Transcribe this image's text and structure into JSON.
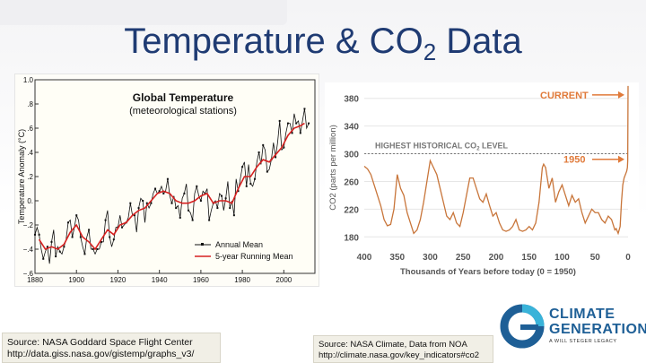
{
  "title": {
    "main": "Temperature & CO",
    "sub": "2",
    "tail": " Data"
  },
  "source_left": {
    "line1": "Source: NASA Goddard Space Flight Center",
    "line2": "http://data.giss.nasa.gov/gistemp/graphs_v3/"
  },
  "source_right": {
    "line1": "Source: NASA Climate, Data from NOA",
    "line2": "http://climate.nasa.gov/key_indicators#co2"
  },
  "logo": {
    "line1": "CLIMATE",
    "line2": "GENERATION",
    "tagline": "A WILL STEGER LEGACY",
    "brand_color": "#1e5f96",
    "accent_color": "#39b3d9"
  },
  "colors": {
    "title": "#1f3b73",
    "temp_annual": "#111111",
    "temp_running": "#d62020",
    "co2_line": "#c8753a",
    "co2_label": "#e07a3a"
  },
  "chart_data": [
    {
      "type": "line",
      "title": "Global Temperature",
      "subtitle": "(meteorological stations)",
      "ylabel": "Temperature Anomaly (°C)",
      "xlabel": "",
      "xlim": [
        1880,
        2015
      ],
      "ylim": [
        -0.6,
        1.0
      ],
      "x_ticks": [
        1880,
        1900,
        1920,
        1940,
        1960,
        1980,
        2000
      ],
      "y_ticks": [
        -0.6,
        -0.4,
        -0.2,
        0.0,
        0.2,
        0.4,
        0.6,
        0.8,
        1.0
      ],
      "y_tick_labels": [
        "−.6",
        "−.4",
        "−.2",
        "0.",
        ".2",
        ".4",
        ".6",
        ".8",
        "1.0"
      ],
      "legend": {
        "position": "bottom-right",
        "annual": "Annual Mean",
        "running": "5-year Running Mean"
      },
      "series": [
        {
          "name": "Annual Mean",
          "x": [
            1880,
            1881,
            1882,
            1883,
            1884,
            1885,
            1886,
            1887,
            1888,
            1889,
            1890,
            1891,
            1892,
            1893,
            1894,
            1895,
            1896,
            1897,
            1898,
            1899,
            1900,
            1901,
            1902,
            1903,
            1904,
            1905,
            1906,
            1907,
            1908,
            1909,
            1910,
            1911,
            1912,
            1913,
            1914,
            1915,
            1916,
            1917,
            1918,
            1919,
            1920,
            1921,
            1922,
            1923,
            1924,
            1925,
            1926,
            1927,
            1928,
            1929,
            1930,
            1931,
            1932,
            1933,
            1934,
            1935,
            1936,
            1937,
            1938,
            1939,
            1940,
            1941,
            1942,
            1943,
            1944,
            1945,
            1946,
            1947,
            1948,
            1949,
            1950,
            1951,
            1952,
            1953,
            1954,
            1955,
            1956,
            1957,
            1958,
            1959,
            1960,
            1961,
            1962,
            1963,
            1964,
            1965,
            1966,
            1967,
            1968,
            1969,
            1970,
            1971,
            1972,
            1973,
            1974,
            1975,
            1976,
            1977,
            1978,
            1979,
            1980,
            1981,
            1982,
            1983,
            1984,
            1985,
            1986,
            1987,
            1988,
            1989,
            1990,
            1991,
            1992,
            1993,
            1994,
            1995,
            1996,
            1997,
            1998,
            1999,
            2000,
            2001,
            2002,
            2003,
            2004,
            2005,
            2006,
            2007,
            2008,
            2009,
            2010,
            2011,
            2012
          ],
          "y": [
            -0.28,
            -0.22,
            -0.28,
            -0.4,
            -0.48,
            -0.42,
            -0.38,
            -0.52,
            -0.34,
            -0.24,
            -0.46,
            -0.38,
            -0.42,
            -0.44,
            -0.38,
            -0.32,
            -0.18,
            -0.16,
            -0.3,
            -0.22,
            -0.12,
            -0.16,
            -0.3,
            -0.38,
            -0.44,
            -0.3,
            -0.24,
            -0.4,
            -0.4,
            -0.44,
            -0.4,
            -0.4,
            -0.34,
            -0.34,
            -0.16,
            -0.08,
            -0.3,
            -0.38,
            -0.32,
            -0.22,
            -0.22,
            -0.12,
            -0.22,
            -0.2,
            -0.18,
            -0.14,
            -0.02,
            -0.12,
            -0.12,
            -0.26,
            -0.06,
            0.02,
            0.0,
            -0.18,
            -0.02,
            -0.06,
            -0.02,
            0.06,
            0.1,
            0.06,
            0.08,
            0.12,
            0.06,
            0.08,
            0.18,
            0.04,
            -0.02,
            0.04,
            -0.06,
            -0.04,
            -0.14,
            0.02,
            0.06,
            0.14,
            -0.08,
            -0.1,
            -0.16,
            0.06,
            0.12,
            0.04,
            0.0,
            0.08,
            0.06,
            0.1,
            -0.16,
            -0.08,
            -0.02,
            0.0,
            -0.06,
            0.06,
            0.04,
            -0.08,
            0.02,
            0.16,
            -0.06,
            0.0,
            -0.12,
            0.18,
            0.08,
            0.18,
            0.28,
            0.32,
            0.12,
            0.3,
            0.14,
            0.12,
            0.18,
            0.32,
            0.4,
            0.3,
            0.46,
            0.42,
            0.24,
            0.26,
            0.34,
            0.48,
            0.36,
            0.48,
            0.66,
            0.42,
            0.44,
            0.56,
            0.64,
            0.64,
            0.56,
            0.72,
            0.64,
            0.66,
            0.56,
            0.66,
            0.76,
            0.6,
            0.64
          ]
        },
        {
          "name": "5-year Running Mean",
          "x": [
            1882,
            1885,
            1888,
            1891,
            1894,
            1897,
            1900,
            1903,
            1906,
            1909,
            1912,
            1915,
            1918,
            1921,
            1924,
            1927,
            1930,
            1933,
            1936,
            1939,
            1942,
            1945,
            1948,
            1951,
            1954,
            1957,
            1960,
            1963,
            1966,
            1969,
            1972,
            1975,
            1978,
            1981,
            1984,
            1987,
            1990,
            1993,
            1996,
            1999,
            2002,
            2005,
            2008,
            2010
          ],
          "y": [
            -0.32,
            -0.4,
            -0.38,
            -0.4,
            -0.36,
            -0.26,
            -0.2,
            -0.3,
            -0.34,
            -0.4,
            -0.32,
            -0.24,
            -0.28,
            -0.2,
            -0.18,
            -0.12,
            -0.08,
            -0.06,
            0.0,
            0.06,
            0.08,
            0.06,
            0.0,
            -0.02,
            -0.02,
            0.0,
            0.04,
            0.06,
            -0.02,
            0.0,
            0.0,
            -0.02,
            0.1,
            0.2,
            0.2,
            0.28,
            0.34,
            0.32,
            0.38,
            0.44,
            0.54,
            0.6,
            0.62,
            0.64
          ]
        }
      ]
    },
    {
      "type": "line",
      "title": "",
      "ylabel": "CO2 (parts per million)",
      "xlabel": "Thousands of Years before today (0 = 1950)",
      "xlim": [
        400,
        0
      ],
      "ylim": [
        170,
        390
      ],
      "x_ticks": [
        400,
        350,
        300,
        250,
        200,
        150,
        100,
        50,
        0
      ],
      "y_ticks": [
        180,
        220,
        260,
        300,
        340,
        380
      ],
      "annotations": {
        "current": "CURRENT",
        "year1950": "1950",
        "highest_main": "HIGHEST HISTORICAL CO",
        "highest_sub": "2",
        "highest_tail": " LEVEL",
        "highest_value": 300
      },
      "series": [
        {
          "name": "CO2",
          "x": [
            400,
            395,
            390,
            385,
            380,
            375,
            370,
            365,
            360,
            355,
            350,
            345,
            340,
            335,
            330,
            325,
            320,
            315,
            310,
            305,
            300,
            295,
            290,
            285,
            280,
            275,
            270,
            265,
            260,
            255,
            250,
            245,
            240,
            235,
            230,
            225,
            220,
            215,
            210,
            205,
            200,
            195,
            190,
            185,
            180,
            175,
            170,
            165,
            160,
            155,
            150,
            145,
            140,
            135,
            130,
            128,
            125,
            120,
            115,
            110,
            105,
            100,
            95,
            90,
            85,
            80,
            75,
            70,
            65,
            60,
            55,
            50,
            45,
            40,
            35,
            30,
            25,
            20,
            18,
            15,
            12,
            10,
            8,
            6,
            4,
            2,
            1,
            0.5,
            0
          ],
          "y": [
            282,
            278,
            270,
            255,
            240,
            225,
            205,
            196,
            198,
            220,
            270,
            250,
            240,
            215,
            200,
            185,
            190,
            205,
            230,
            260,
            290,
            280,
            270,
            250,
            230,
            210,
            205,
            215,
            200,
            195,
            215,
            240,
            265,
            265,
            250,
            235,
            230,
            242,
            225,
            210,
            215,
            200,
            190,
            188,
            190,
            195,
            205,
            190,
            188,
            190,
            195,
            190,
            200,
            230,
            280,
            285,
            280,
            250,
            265,
            230,
            245,
            255,
            240,
            225,
            240,
            230,
            235,
            215,
            200,
            210,
            220,
            215,
            215,
            205,
            200,
            210,
            205,
            190,
            192,
            185,
            195,
            230,
            255,
            265,
            270,
            275,
            280,
            290,
            398
          ]
        }
      ]
    }
  ]
}
